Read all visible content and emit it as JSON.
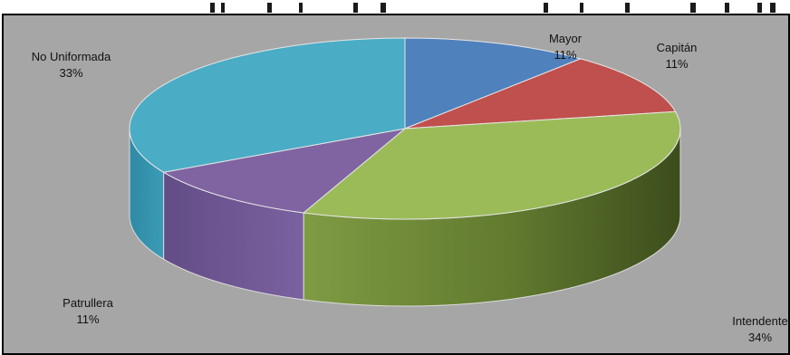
{
  "chart_data": {
    "type": "pie",
    "title": "",
    "slices": [
      {
        "label": "Mayor",
        "value": 11,
        "display": "11%",
        "color": "#4f81bd"
      },
      {
        "label": "Capitán",
        "value": 11,
        "display": "11%",
        "color": "#c0504d"
      },
      {
        "label": "Intendente",
        "value": 34,
        "display": "34%",
        "color": "#9bbb59"
      },
      {
        "label": "Patrullera",
        "value": 11,
        "display": "11%",
        "color": "#8064a2"
      },
      {
        "label": "No Uniformada",
        "value": 33,
        "display": "33%",
        "color": "#4bacc6"
      }
    ],
    "style": "3d-exploded-perspective",
    "legend": "none",
    "data_labels": "outside"
  }
}
